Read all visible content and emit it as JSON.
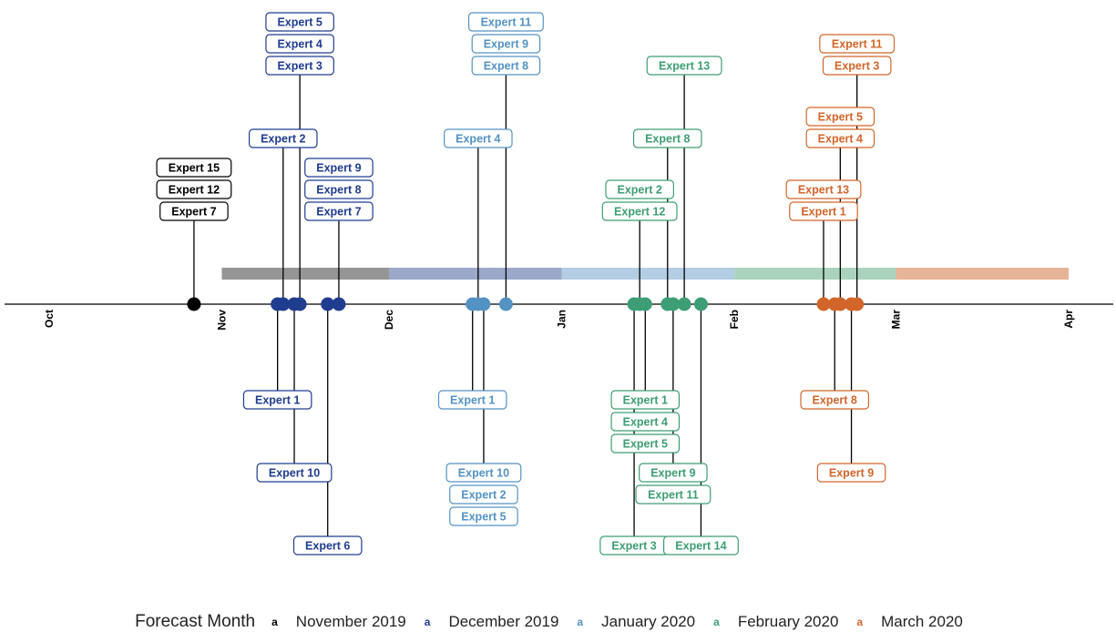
{
  "chart_data": {
    "type": "timeline",
    "title": "",
    "xaxis": {
      "ticks": [
        {
          "label": "Oct",
          "date": "2019-10-01"
        },
        {
          "label": "Nov",
          "date": "2019-11-01"
        },
        {
          "label": "Dec",
          "date": "2019-12-01"
        },
        {
          "label": "Jan",
          "date": "2020-01-01"
        },
        {
          "label": "Feb",
          "date": "2020-02-01"
        },
        {
          "label": "Mar",
          "date": "2020-03-01"
        },
        {
          "label": "Apr",
          "date": "2020-04-01"
        }
      ],
      "range": [
        "2019-09-23",
        "2020-04-09"
      ]
    },
    "legend": {
      "title": "Forecast Month",
      "key_glyph": "a",
      "placement": "bottom",
      "items": [
        {
          "label": "November 2019",
          "color": "#000000"
        },
        {
          "label": "December 2019",
          "color": "#1f3d8f"
        },
        {
          "label": "January 2020",
          "color": "#5393c3"
        },
        {
          "label": "February 2020",
          "color": "#3d9e73"
        },
        {
          "label": "March 2020",
          "color": "#d2662a"
        }
      ]
    },
    "month_bands": [
      {
        "series": 0,
        "start": "2019-11-01",
        "end": "2019-12-01",
        "color": "#959595"
      },
      {
        "series": 1,
        "start": "2019-12-01",
        "end": "2020-01-01",
        "color": "#9ba8ca"
      },
      {
        "series": 2,
        "start": "2020-01-01",
        "end": "2020-02-01",
        "color": "#b3cde3"
      },
      {
        "series": 3,
        "start": "2020-02-01",
        "end": "2020-03-01",
        "color": "#a9d3bd"
      },
      {
        "series": 4,
        "start": "2020-03-01",
        "end": "2020-04-01",
        "color": "#e8b498"
      }
    ],
    "events": [
      {
        "series": 0,
        "date": "2019-10-27",
        "labels": [
          "Expert 15",
          "Expert 12",
          "Expert 7"
        ],
        "side": "above",
        "tier": 3
      },
      {
        "series": 1,
        "date": "2019-11-11",
        "labels": [
          "Expert 1"
        ],
        "side": "below",
        "tier": 1
      },
      {
        "series": 1,
        "date": "2019-11-12",
        "labels": [
          "Expert 2"
        ],
        "side": "above",
        "tier": 4
      },
      {
        "series": 1,
        "date": "2019-11-14",
        "labels": [
          "Expert 10"
        ],
        "side": "below",
        "tier": 2
      },
      {
        "series": 1,
        "date": "2019-11-15",
        "labels": [
          "Expert 5",
          "Expert 4",
          "Expert 3"
        ],
        "side": "above",
        "tier": 5
      },
      {
        "series": 1,
        "date": "2019-11-20",
        "labels": [
          "Expert 6"
        ],
        "side": "below",
        "tier": 3
      },
      {
        "series": 1,
        "date": "2019-11-22",
        "labels": [
          "Expert 9",
          "Expert 8",
          "Expert 7"
        ],
        "side": "above",
        "tier": 2
      },
      {
        "series": 2,
        "date": "2019-12-16",
        "labels": [
          "Expert 1"
        ],
        "side": "below",
        "tier": 1
      },
      {
        "series": 2,
        "date": "2019-12-17",
        "labels": [
          "Expert 4"
        ],
        "side": "above",
        "tier": 4
      },
      {
        "series": 2,
        "date": "2019-12-18",
        "labels": [
          "Expert 10",
          "Expert 2",
          "Expert 5"
        ],
        "side": "below",
        "tier": 2
      },
      {
        "series": 2,
        "date": "2019-12-22",
        "labels": [
          "Expert 11",
          "Expert 9",
          "Expert 8"
        ],
        "side": "above",
        "tier": 5
      },
      {
        "series": 3,
        "date": "2020-01-14",
        "labels": [
          "Expert 3"
        ],
        "side": "below",
        "tier": 3
      },
      {
        "series": 3,
        "date": "2020-01-15",
        "labels": [
          "Expert 2",
          "Expert 12"
        ],
        "side": "above",
        "tier": 3
      },
      {
        "series": 3,
        "date": "2020-01-16",
        "labels": [
          "Expert 1",
          "Expert 4",
          "Expert 5"
        ],
        "side": "below",
        "tier": 1
      },
      {
        "series": 3,
        "date": "2020-01-20",
        "labels": [
          "Expert 8"
        ],
        "side": "above",
        "tier": 4
      },
      {
        "series": 3,
        "date": "2020-01-21",
        "labels": [
          "Expert 9",
          "Expert 11"
        ],
        "side": "below",
        "tier": 2
      },
      {
        "series": 3,
        "date": "2020-01-23",
        "labels": [
          "Expert 13"
        ],
        "side": "above",
        "tier": 5
      },
      {
        "series": 3,
        "date": "2020-01-26",
        "labels": [
          "Expert 14"
        ],
        "side": "below",
        "tier": 3
      },
      {
        "series": 4,
        "date": "2020-02-17",
        "labels": [
          "Expert 13",
          "Expert 1"
        ],
        "side": "above",
        "tier": 3
      },
      {
        "series": 4,
        "date": "2020-02-19",
        "labels": [
          "Expert 8"
        ],
        "side": "below",
        "tier": 1
      },
      {
        "series": 4,
        "date": "2020-02-20",
        "labels": [
          "Expert 5",
          "Expert 4"
        ],
        "side": "above",
        "tier": 4
      },
      {
        "series": 4,
        "date": "2020-02-22",
        "labels": [
          "Expert 9"
        ],
        "side": "below",
        "tier": 2
      },
      {
        "series": 4,
        "date": "2020-02-23",
        "labels": [
          "Expert 11",
          "Expert 3"
        ],
        "side": "above",
        "tier": 5
      }
    ]
  }
}
